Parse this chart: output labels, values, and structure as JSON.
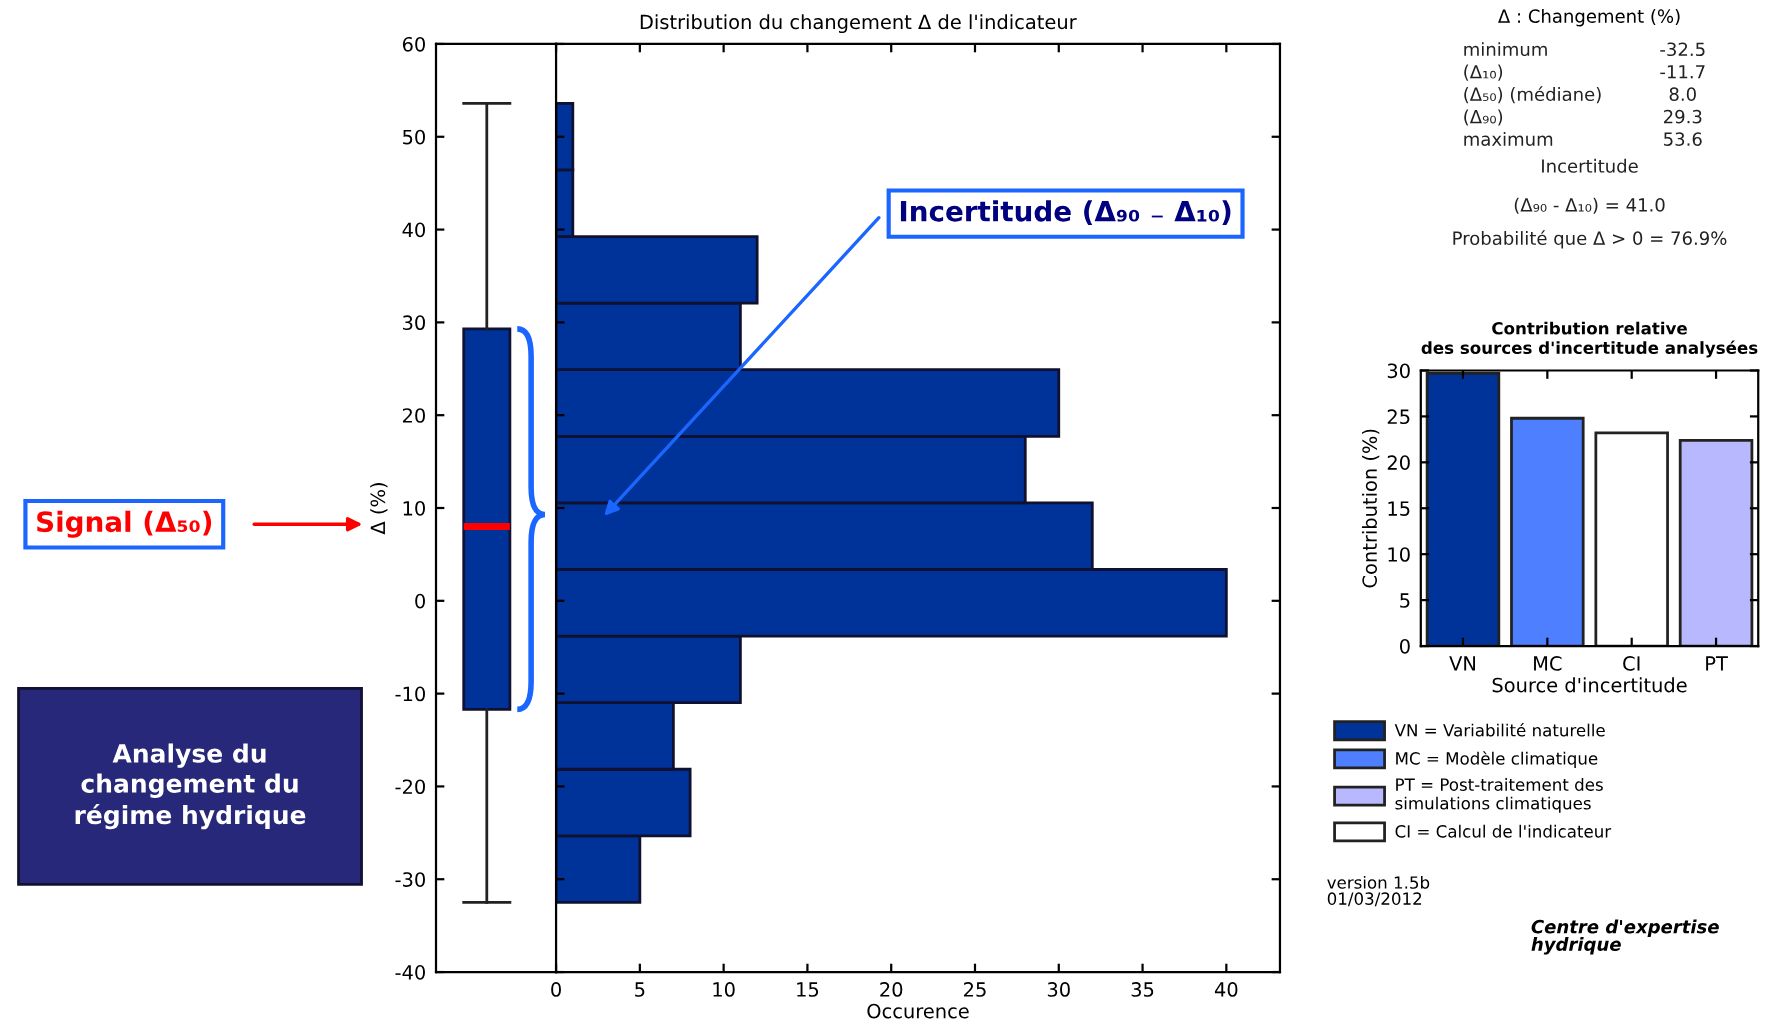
{
  "chart_data": [
    {
      "type": "box",
      "ylabel": "Δ (%)",
      "categories": [
        null
      ],
      "color": "#003399",
      "boxes": [
        {
          "low": -32.5,
          "q1": -11.7,
          "median": 8.0,
          "q3": 29.3,
          "high": 53.6
        }
      ],
      "ylim": [
        -40,
        60
      ],
      "yticks": [
        -40,
        -30,
        -20,
        -10,
        0,
        10,
        20,
        30,
        40,
        50,
        60
      ],
      "tick_labels": "y",
      "annotations": [
        "Signal (Δ₅₀)",
        "Analyse du\nchangement du\nrégime hydrique"
      ]
    },
    {
      "type": "histogram",
      "orientation": "horizontal",
      "title": "Distribution du changement Δ de l'indicateur",
      "xlabel": "Occurence",
      "bins": [
        -32.5,
        -25.325,
        -18.15,
        -10.975,
        -3.8,
        3.375,
        10.55,
        17.725,
        24.9,
        32.075,
        39.25,
        46.425,
        53.6
      ],
      "values": [
        5,
        8,
        7,
        11,
        40,
        32,
        28,
        30,
        11,
        12,
        1,
        1
      ],
      "color": "#003399",
      "xlim": [
        0,
        43.2
      ],
      "xticks": [
        0,
        5,
        10,
        15,
        20,
        25,
        30,
        35,
        40
      ],
      "ylim": [
        -40,
        60
      ],
      "yticks": [
        -40,
        -30,
        -20,
        -10,
        0,
        10,
        20,
        30,
        40,
        50,
        60
      ],
      "tick_labels": "x",
      "grid": false,
      "annotations": [
        "Incertitude (Δ₉₀ ₋ Δ₁₀)"
      ]
    },
    {
      "type": "other",
      "title": "Δ : Changement (%)",
      "annotations": [
        "minimum",
        "-32.5",
        "(Δ₁₀)",
        "-11.7",
        "(Δ₅₀) (médiane)",
        "8.0",
        "(Δ₉₀)",
        "29.3",
        "maximum",
        "53.6",
        "Incertitude",
        "(Δ₉₀ - Δ₁₀) = 41.0",
        "Probabilité que Δ > 0 = 76.9%"
      ]
    },
    {
      "type": "bar",
      "title": "Contribution relative\ndes sources d'incertitude analysées",
      "xlabel": "Source d'incertitude",
      "ylabel": "Contribution (%)",
      "categories": [
        "VN",
        "MC",
        "CI",
        "PT"
      ],
      "series": [
        {
          "name": "VN = Variabilité naturelle",
          "color": "#003399",
          "values": [
            29.7,
            null,
            null,
            null
          ]
        },
        {
          "name": "MC = Modèle climatique",
          "color": "#4d7fff",
          "values": [
            null,
            24.8,
            null,
            null
          ]
        },
        {
          "name": "PT = Post-traitement des\nsimulations climatiques",
          "color": "#b8b8ff",
          "values": [
            null,
            null,
            null,
            22.4
          ]
        },
        {
          "name": "CI = Calcul de l'indicateur",
          "color": "#ffffff",
          "values": [
            null,
            null,
            23.2,
            null
          ]
        }
      ],
      "ylim": [
        0,
        30
      ],
      "yticks": [
        0,
        5,
        10,
        15,
        20,
        25,
        30
      ],
      "grid": false,
      "legend": "bottom",
      "annotations": [
        "version 1.5b\n01/03/2012",
        "Centre d'expertise\nhydrique"
      ]
    }
  ]
}
